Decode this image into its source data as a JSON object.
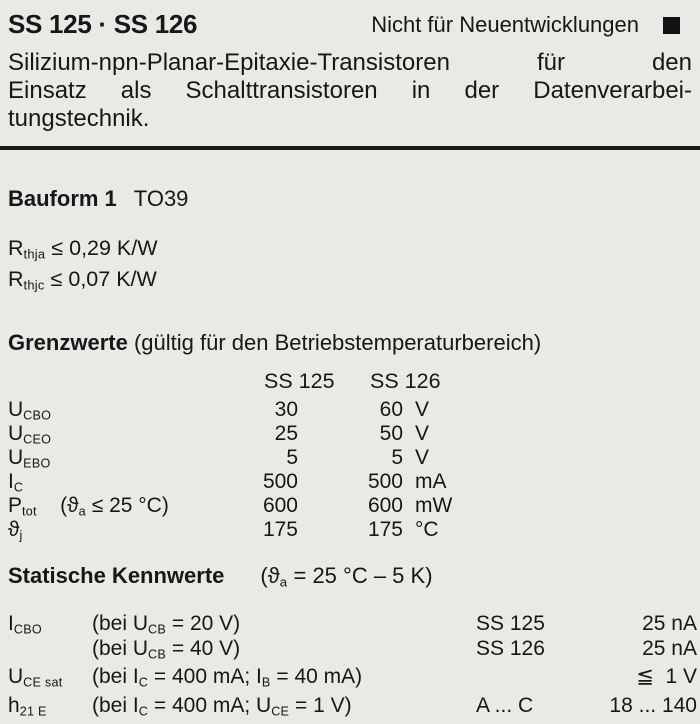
{
  "header": {
    "title": "SS 125 · SS 126",
    "notice": "Nicht für Neuentwicklungen",
    "marker_icon": "filled-black-square",
    "ink_color": "#1a1a1a",
    "paper_color": "#eae9e5"
  },
  "intro": {
    "line1": "Silizium-npn-Planar-Epitaxie-Transistoren für den",
    "line2": "Einsatz als Schalttransistoren in der Datenverarbei-",
    "line3": "tungstechnik."
  },
  "bauform": {
    "label": "Bauform 1",
    "package": "TO39"
  },
  "thermal": {
    "rows": [
      [
        {
          "text": "R"
        },
        {
          "sub": "thja"
        },
        {
          "text": " ≤ 0,29 K/W"
        }
      ],
      [
        {
          "text": "R"
        },
        {
          "sub": "thjc"
        },
        {
          "text": " ≤ 0,07 K/W"
        }
      ]
    ]
  },
  "grenzwerte": {
    "heading_bold": "Grenzwerte",
    "heading_rest": " (gültig für den Betriebstemperaturbereich)",
    "col_headers": [
      "SS 125",
      "SS 126"
    ],
    "rows": [
      {
        "sym": [
          {
            "text": "U"
          },
          {
            "sub": "CBO"
          }
        ],
        "v1": "30",
        "v2": "60",
        "unit": "V"
      },
      {
        "sym": [
          {
            "text": "U"
          },
          {
            "sub": "CEO"
          }
        ],
        "v1": "25",
        "v2": "50",
        "unit": "V"
      },
      {
        "sym": [
          {
            "text": "U"
          },
          {
            "sub": "EBO"
          }
        ],
        "v1": "5",
        "v2": "5",
        "unit": "V"
      },
      {
        "sym": [
          {
            "text": "I"
          },
          {
            "sub": "C"
          }
        ],
        "v1": "500",
        "v2": "500",
        "unit": "mA"
      },
      {
        "sym": [
          {
            "text": "P"
          },
          {
            "sub": "tot"
          },
          {
            "text": "    (ϑ"
          },
          {
            "sub": "a"
          },
          {
            "text": " ≤ 25 °C)"
          }
        ],
        "v1": "600",
        "v2": "600",
        "unit": "mW"
      },
      {
        "sym": [
          {
            "text": "ϑ"
          },
          {
            "sub": "j"
          }
        ],
        "v1": "175",
        "v2": "175",
        "unit": "°C"
      }
    ]
  },
  "statische": {
    "heading_bold": "Statische Kennwerte",
    "heading_cond": [
      {
        "text": "(ϑ"
      },
      {
        "sub": "a"
      },
      {
        "text": " = 25 °C – 5 K)"
      }
    ],
    "rows": [
      {
        "sym": [
          {
            "text": "I"
          },
          {
            "sub": "CBO"
          }
        ],
        "cond": [
          {
            "text": "(bei U"
          },
          {
            "sub": "CB"
          },
          {
            "text": " = 20 V)"
          }
        ],
        "type": "SS 125",
        "value": "25 nA"
      },
      {
        "sym": [],
        "cond": [
          {
            "text": "(bei U"
          },
          {
            "sub": "CB"
          },
          {
            "text": " = 40 V)"
          }
        ],
        "type": "SS 126",
        "value": "25 nA"
      },
      {
        "sym": [
          {
            "text": "U"
          },
          {
            "sub": "CE sat"
          }
        ],
        "cond": [
          {
            "text": "(bei I"
          },
          {
            "sub": "C"
          },
          {
            "text": " = 400 mA; I"
          },
          {
            "sub": "B"
          },
          {
            "text": " = 40 mA)"
          }
        ],
        "type": "",
        "value": "≦  1 V"
      },
      {
        "sym": [
          {
            "text": "h"
          },
          {
            "sub": "21 E"
          }
        ],
        "cond": [
          {
            "text": "(bei I"
          },
          {
            "sub": "C"
          },
          {
            "text": " = 400 mA; U"
          },
          {
            "sub": "CE"
          },
          {
            "text": " = 1 V)"
          }
        ],
        "type": "A ... C",
        "value": "18 ... 140"
      }
    ]
  }
}
